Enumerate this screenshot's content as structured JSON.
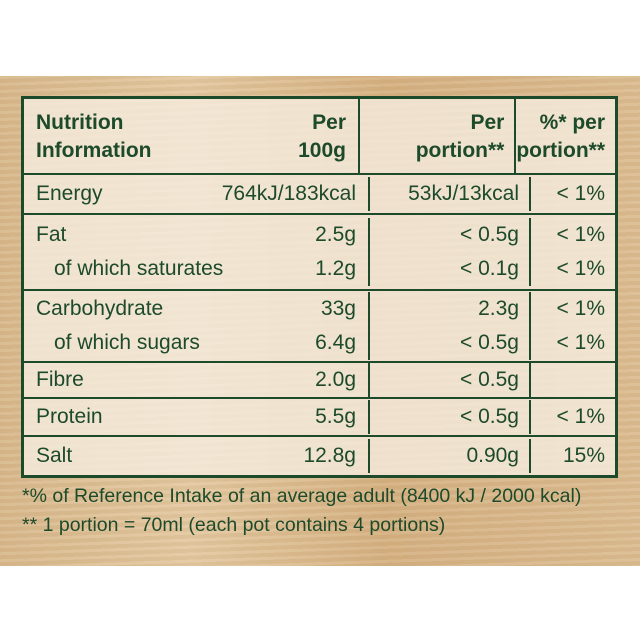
{
  "header": {
    "col1": [
      "Nutrition",
      "Information"
    ],
    "col_per100": [
      "Per",
      "100g"
    ],
    "col_portion": [
      "Per",
      "portion**"
    ],
    "col_ri": [
      "%* per",
      "portion**"
    ]
  },
  "rows": [
    {
      "label": "Energy",
      "per100": "764kJ/183kcal",
      "portion": "53kJ/13kcal",
      "ri": "< 1%"
    },
    {
      "label": "Fat",
      "per100": "2.5g",
      "portion": "< 0.5g",
      "ri": "< 1%"
    },
    {
      "label": "of which saturates",
      "per100": "1.2g",
      "portion": "< 0.1g",
      "ri": "< 1%"
    },
    {
      "label": "Carbohydrate",
      "per100": "33g",
      "portion": "2.3g",
      "ri": "< 1%"
    },
    {
      "label": "of which sugars",
      "per100": "6.4g",
      "portion": "< 0.5g",
      "ri": "< 1%"
    },
    {
      "label": "Fibre",
      "per100": "2.0g",
      "portion": "< 0.5g",
      "ri": ""
    },
    {
      "label": "Protein",
      "per100": "5.5g",
      "portion": "< 0.5g",
      "ri": "< 1%"
    },
    {
      "label": "Salt",
      "per100": "12.8g",
      "portion": "0.90g",
      "ri": "15%"
    }
  ],
  "footnotes": [
    "*% of Reference Intake of an average adult (8400 kJ / 2000 kcal)",
    "** 1 portion = 70ml (each pot contains 4 portions)"
  ],
  "colors": {
    "text": "#1d4a2a",
    "background": "#dcbd92"
  }
}
